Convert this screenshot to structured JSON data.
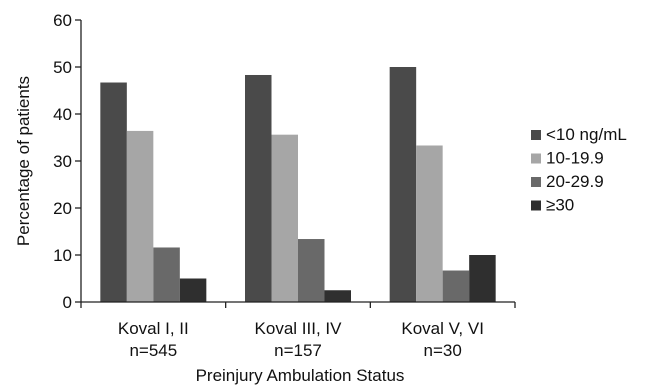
{
  "chart_data": {
    "type": "bar",
    "title": "",
    "xlabel": "Preinjury Ambulation Status",
    "ylabel": "Percentage of patients",
    "ylim": [
      0,
      60
    ],
    "yticks": [
      0,
      10,
      20,
      30,
      40,
      50,
      60
    ],
    "grid": false,
    "legend_position": "right",
    "categories": [
      [
        "Koval I, II",
        "n=545"
      ],
      [
        "Koval III, IV",
        "n=157"
      ],
      [
        "Koval V, VI",
        "n=30"
      ]
    ],
    "series": [
      {
        "name": "<10 ng/mL",
        "color": "#4a4a4a",
        "values": [
          46.7,
          48.3,
          50.0
        ]
      },
      {
        "name": "10-19.9",
        "color": "#a6a6a6",
        "values": [
          36.4,
          35.6,
          33.3
        ]
      },
      {
        "name": "20-29.9",
        "color": "#696969",
        "values": [
          11.6,
          13.4,
          6.7
        ]
      },
      {
        "name": "≥30",
        "color": "#2f2f2f",
        "values": [
          5.0,
          2.5,
          10.0
        ]
      }
    ]
  }
}
